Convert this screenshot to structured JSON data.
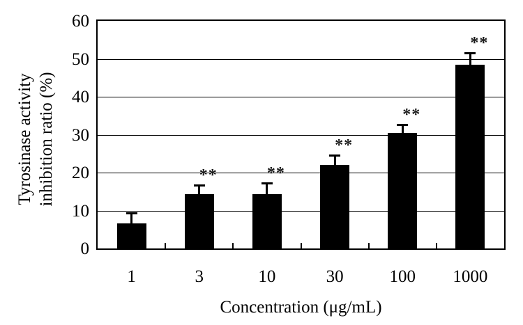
{
  "figure": {
    "background": "#ffffff"
  },
  "chart_data": {
    "type": "bar",
    "title": "",
    "xlabel": "Concentration (μg/mL)",
    "ylabel": "Tyrosinase activity inhibition ratio (%)",
    "ylabel_lines": [
      "Tyrosinase activity",
      "inhibition ratio (%)"
    ],
    "categories": [
      "1",
      "3",
      "10",
      "30",
      "100",
      "1000"
    ],
    "values": [
      6.7,
      14.3,
      14.3,
      22.0,
      30.5,
      48.5
    ],
    "error_plus": [
      2.6,
      2.4,
      3.0,
      2.5,
      2.2,
      3.0
    ],
    "significance": [
      "",
      "**",
      "**",
      "**",
      "**",
      "**"
    ],
    "ylim": [
      0,
      60
    ],
    "yticks": [
      "0",
      "10",
      "20",
      "30",
      "40",
      "50",
      "60"
    ],
    "grid": true,
    "legend_position": "none",
    "bar_color": "#000000",
    "axis_color": "#000000",
    "sig_color": "#1a1a1a"
  }
}
